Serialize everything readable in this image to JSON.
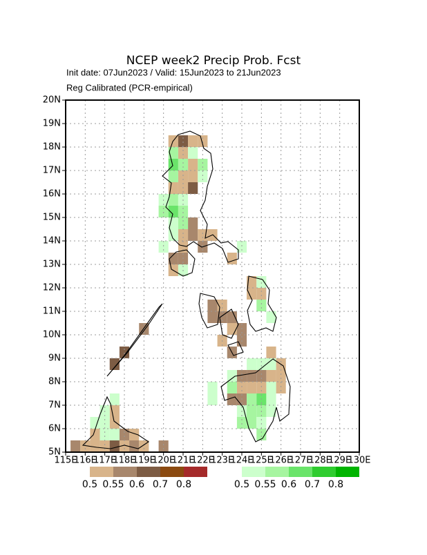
{
  "chart_data": {
    "type": "gridmap",
    "title": "NCEP week2 Precip Prob. Fcst",
    "subtitle": "Init date: 07Jun2023 / Valid: 15Jun2023 to 21Jun2023",
    "note": "Reg Calibrated (PCR-empirical)",
    "xlim": [
      115,
      130
    ],
    "ylim": [
      5,
      20
    ],
    "cell": 0.5,
    "grid": true,
    "xticks": [
      {
        "value": 115,
        "label": "115E"
      },
      {
        "value": 116,
        "label": "116E"
      },
      {
        "value": 117,
        "label": "117E"
      },
      {
        "value": 118,
        "label": "118E"
      },
      {
        "value": 119,
        "label": "119E"
      },
      {
        "value": 120,
        "label": "120E"
      },
      {
        "value": 121,
        "label": "121E"
      },
      {
        "value": 122,
        "label": "122E"
      },
      {
        "value": 123,
        "label": "123E"
      },
      {
        "value": 124,
        "label": "124E"
      },
      {
        "value": 125,
        "label": "125E"
      },
      {
        "value": 126,
        "label": "126E"
      },
      {
        "value": 127,
        "label": "127E"
      },
      {
        "value": 128,
        "label": "128E"
      },
      {
        "value": 129,
        "label": "129E"
      },
      {
        "value": 130,
        "label": "130E"
      }
    ],
    "yticks": [
      {
        "value": 5,
        "label": "5N"
      },
      {
        "value": 6,
        "label": "6N"
      },
      {
        "value": 7,
        "label": "7N"
      },
      {
        "value": 8,
        "label": "8N"
      },
      {
        "value": 9,
        "label": "9N"
      },
      {
        "value": 10,
        "label": "10N"
      },
      {
        "value": 11,
        "label": "11N"
      },
      {
        "value": 12,
        "label": "12N"
      },
      {
        "value": 13,
        "label": "13N"
      },
      {
        "value": 14,
        "label": "14N"
      },
      {
        "value": 15,
        "label": "15N"
      },
      {
        "value": 16,
        "label": "16N"
      },
      {
        "value": 17,
        "label": "17N"
      },
      {
        "value": 18,
        "label": "18N"
      },
      {
        "value": 19,
        "label": "19N"
      },
      {
        "value": 20,
        "label": "20N"
      }
    ],
    "below": {
      "levels": [
        0.5,
        0.55,
        0.6,
        0.7,
        0.8
      ],
      "colors": [
        "#d8b48a",
        "#a8876c",
        "#7d5c44",
        "#8b4a10",
        "#a52a2a"
      ]
    },
    "above": {
      "levels": [
        0.5,
        0.55,
        0.6,
        0.7,
        0.8
      ],
      "colors": [
        "#ccffcc",
        "#a6f5a0",
        "#6ae46a",
        "#2fcc2f",
        "#00b400"
      ]
    },
    "below_cells": [
      {
        "lon": 120.25,
        "lat": 18,
        "p": 0.5
      },
      {
        "lon": 120.75,
        "lat": 18,
        "p": 0.6
      },
      {
        "lon": 121.25,
        "lat": 18,
        "p": 0.5
      },
      {
        "lon": 121.75,
        "lat": 18,
        "p": 0.5
      },
      {
        "lon": 120.75,
        "lat": 17.5,
        "p": 0.5
      },
      {
        "lon": 121.25,
        "lat": 17,
        "p": 0.5
      },
      {
        "lon": 120.75,
        "lat": 16.5,
        "p": 0.5
      },
      {
        "lon": 121.25,
        "lat": 16.5,
        "p": 0.5
      },
      {
        "lon": 120.25,
        "lat": 16,
        "p": 0.5
      },
      {
        "lon": 120.75,
        "lat": 16,
        "p": 0.5
      },
      {
        "lon": 121.25,
        "lat": 16,
        "p": 0.6
      },
      {
        "lon": 121.25,
        "lat": 14.5,
        "p": 0.55
      },
      {
        "lon": 120.75,
        "lat": 14,
        "p": 0.5
      },
      {
        "lon": 121.25,
        "lat": 14,
        "p": 0.55
      },
      {
        "lon": 121.75,
        "lat": 14,
        "p": 0.5
      },
      {
        "lon": 122.25,
        "lat": 14,
        "p": 0.5
      },
      {
        "lon": 120.75,
        "lat": 13.5,
        "p": 0.5
      },
      {
        "lon": 121.75,
        "lat": 13.5,
        "p": 0.55
      },
      {
        "lon": 120.25,
        "lat": 13,
        "p": 0.55
      },
      {
        "lon": 120.75,
        "lat": 13,
        "p": 0.55
      },
      {
        "lon": 123.25,
        "lat": 13,
        "p": 0.5
      },
      {
        "lon": 120.25,
        "lat": 12.5,
        "p": 0.5
      },
      {
        "lon": 124.25,
        "lat": 12,
        "p": 0.5
      },
      {
        "lon": 124.25,
        "lat": 11.5,
        "p": 0.5
      },
      {
        "lon": 124.75,
        "lat": 11.5,
        "p": 0.5
      },
      {
        "lon": 122.25,
        "lat": 11,
        "p": 0.55
      },
      {
        "lon": 122.75,
        "lat": 11,
        "p": 0.5
      },
      {
        "lon": 122.25,
        "lat": 10.5,
        "p": 0.55
      },
      {
        "lon": 122.75,
        "lat": 10.5,
        "p": 0.55
      },
      {
        "lon": 123.25,
        "lat": 10.5,
        "p": 0.55
      },
      {
        "lon": 123.25,
        "lat": 10,
        "p": 0.5
      },
      {
        "lon": 123.75,
        "lat": 10,
        "p": 0.55
      },
      {
        "lon": 122.75,
        "lat": 9.5,
        "p": 0.5
      },
      {
        "lon": 123.75,
        "lat": 9.5,
        "p": 0.55
      },
      {
        "lon": 123.25,
        "lat": 9,
        "p": 0.55
      },
      {
        "lon": 125.25,
        "lat": 9,
        "p": 0.5
      },
      {
        "lon": 125.75,
        "lat": 8.5,
        "p": 0.5
      },
      {
        "lon": 123.75,
        "lat": 8,
        "p": 0.55
      },
      {
        "lon": 124.25,
        "lat": 8,
        "p": 0.55
      },
      {
        "lon": 124.75,
        "lat": 8,
        "p": 0.55
      },
      {
        "lon": 125.25,
        "lat": 8,
        "p": 0.5
      },
      {
        "lon": 125.75,
        "lat": 8,
        "p": 0.5
      },
      {
        "lon": 123.75,
        "lat": 7.5,
        "p": 0.5
      },
      {
        "lon": 124.25,
        "lat": 7.5,
        "p": 0.5
      },
      {
        "lon": 124.75,
        "lat": 7.5,
        "p": 0.5
      },
      {
        "lon": 125.75,
        "lat": 7.5,
        "p": 0.5
      },
      {
        "lon": 123.25,
        "lat": 7,
        "p": 0.55
      },
      {
        "lon": 123.75,
        "lat": 7,
        "p": 0.55
      },
      {
        "lon": 117.75,
        "lat": 9,
        "p": 0.6
      },
      {
        "lon": 117.25,
        "lat": 8.5,
        "p": 0.6
      },
      {
        "lon": 118.75,
        "lat": 10,
        "p": 0.55
      },
      {
        "lon": 117.25,
        "lat": 6.5,
        "p": 0.5
      },
      {
        "lon": 117.25,
        "lat": 6,
        "p": 0.5
      },
      {
        "lon": 116.25,
        "lat": 5.5,
        "p": 0.5
      },
      {
        "lon": 117.75,
        "lat": 5.5,
        "p": 0.55
      },
      {
        "lon": 118.25,
        "lat": 5.5,
        "p": 0.5
      },
      {
        "lon": 115.25,
        "lat": 5,
        "p": 0.55
      },
      {
        "lon": 115.75,
        "lat": 5,
        "p": 0.5
      },
      {
        "lon": 116.25,
        "lat": 5,
        "p": 0.5
      },
      {
        "lon": 116.75,
        "lat": 5,
        "p": 0.5
      },
      {
        "lon": 117.25,
        "lat": 5,
        "p": 0.6
      },
      {
        "lon": 117.75,
        "lat": 5,
        "p": 0.5
      },
      {
        "lon": 118.25,
        "lat": 5,
        "p": 0.55
      },
      {
        "lon": 118.75,
        "lat": 5,
        "p": 0.5
      },
      {
        "lon": 119.75,
        "lat": 5,
        "p": 0.55
      }
    ],
    "above_cells": [
      {
        "lon": 120.25,
        "lat": 17.5,
        "p": 0.55
      },
      {
        "lon": 121.25,
        "lat": 17.5,
        "p": 0.5
      },
      {
        "lon": 120.25,
        "lat": 17,
        "p": 0.6
      },
      {
        "lon": 120.75,
        "lat": 17,
        "p": 0.55
      },
      {
        "lon": 121.75,
        "lat": 17,
        "p": 0.55
      },
      {
        "lon": 120.25,
        "lat": 16.5,
        "p": 0.55
      },
      {
        "lon": 121.75,
        "lat": 16.5,
        "p": 0.5
      },
      {
        "lon": 119.75,
        "lat": 15.5,
        "p": 0.5
      },
      {
        "lon": 120.25,
        "lat": 15.5,
        "p": 0.55
      },
      {
        "lon": 120.75,
        "lat": 15.5,
        "p": 0.5
      },
      {
        "lon": 119.75,
        "lat": 15,
        "p": 0.55
      },
      {
        "lon": 120.25,
        "lat": 15,
        "p": 0.6
      },
      {
        "lon": 120.75,
        "lat": 15,
        "p": 0.55
      },
      {
        "lon": 120.25,
        "lat": 14.5,
        "p": 0.5
      },
      {
        "lon": 120.75,
        "lat": 14.5,
        "p": 0.55
      },
      {
        "lon": 120.25,
        "lat": 14,
        "p": 0.5
      },
      {
        "lon": 119.75,
        "lat": 13.5,
        "p": 0.5
      },
      {
        "lon": 123.75,
        "lat": 13.5,
        "p": 0.5
      },
      {
        "lon": 120.75,
        "lat": 12.5,
        "p": 0.5
      },
      {
        "lon": 124.75,
        "lat": 12,
        "p": 0.5
      },
      {
        "lon": 124.75,
        "lat": 11,
        "p": 0.55
      },
      {
        "lon": 125.25,
        "lat": 10.5,
        "p": 0.5
      },
      {
        "lon": 124.25,
        "lat": 8.5,
        "p": 0.5
      },
      {
        "lon": 124.75,
        "lat": 8.5,
        "p": 0.5
      },
      {
        "lon": 125.25,
        "lat": 8.5,
        "p": 0.5
      },
      {
        "lon": 123.25,
        "lat": 8,
        "p": 0.5
      },
      {
        "lon": 122.25,
        "lat": 7.5,
        "p": 0.5
      },
      {
        "lon": 123.25,
        "lat": 7.5,
        "p": 0.55
      },
      {
        "lon": 125.25,
        "lat": 7.5,
        "p": 0.5
      },
      {
        "lon": 122.25,
        "lat": 7,
        "p": 0.5
      },
      {
        "lon": 124.25,
        "lat": 7,
        "p": 0.55
      },
      {
        "lon": 124.75,
        "lat": 7,
        "p": 0.6
      },
      {
        "lon": 125.25,
        "lat": 7,
        "p": 0.5
      },
      {
        "lon": 123.75,
        "lat": 6.5,
        "p": 0.5
      },
      {
        "lon": 124.25,
        "lat": 6.5,
        "p": 0.55
      },
      {
        "lon": 124.75,
        "lat": 6.5,
        "p": 0.55
      },
      {
        "lon": 125.25,
        "lat": 6.5,
        "p": 0.5
      },
      {
        "lon": 123.75,
        "lat": 6,
        "p": 0.55
      },
      {
        "lon": 124.25,
        "lat": 6,
        "p": 0.55
      },
      {
        "lon": 124.75,
        "lat": 6,
        "p": 0.5
      },
      {
        "lon": 124.75,
        "lat": 5.5,
        "p": 0.55
      },
      {
        "lon": 117.25,
        "lat": 7,
        "p": 0.5
      },
      {
        "lon": 116.75,
        "lat": 6.5,
        "p": 0.5
      },
      {
        "lon": 116.25,
        "lat": 6,
        "p": 0.5
      },
      {
        "lon": 116.75,
        "lat": 6,
        "p": 0.5
      },
      {
        "lon": 116.75,
        "lat": 5.5,
        "p": 0.5
      },
      {
        "lon": 117.25,
        "lat": 5.5,
        "p": 0.5
      }
    ]
  }
}
